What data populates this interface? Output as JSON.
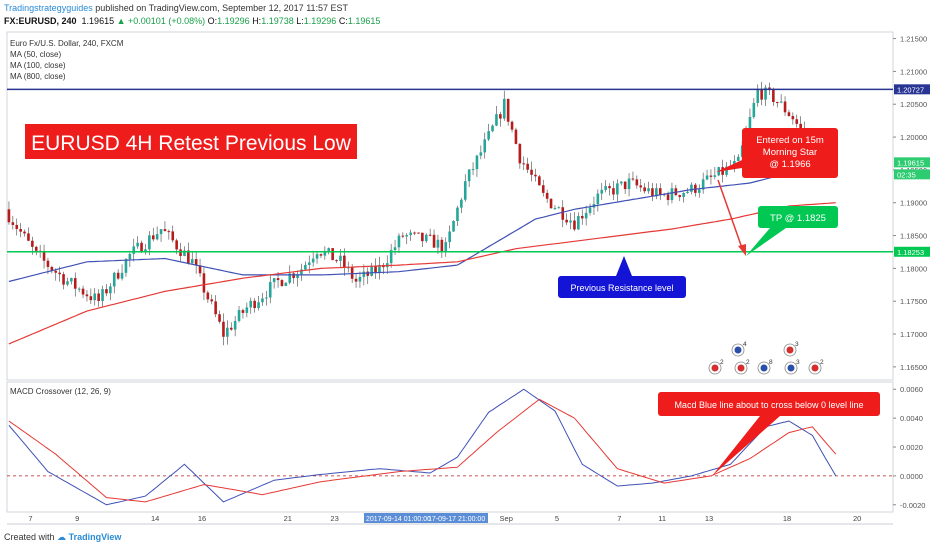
{
  "header": {
    "author": "Tradingstrategyguides",
    "published": " published on TradingView.com, September 12, 2017 11:57 EST",
    "symbol": "FX:EURUSD, 240",
    "price": "1.19615",
    "change": "+0.00101 (+0.08%)",
    "ohlc_o_label": "O:",
    "ohlc_o": "1.19296",
    "ohlc_h_label": "H:",
    "ohlc_h": "1.19738",
    "ohlc_l_label": "L:",
    "ohlc_l": "1.19296",
    "ohlc_c_label": "C:",
    "ohlc_c": "1.19615"
  },
  "footer": {
    "created_with": "Created with",
    "brand": "TradingView"
  },
  "colors": {
    "up": "#26a69a",
    "down": "#b71c1c",
    "ma50": "#3f51b5",
    "ma100": "#e53935",
    "resistance": "#283593",
    "support": "#00c853",
    "callout_red": "#ef1c1c",
    "callout_green": "#00c853",
    "callout_blue": "#1414d6",
    "macd": "#3f51b5",
    "signal": "#e53935"
  },
  "chart_data": [
    {
      "type": "candlestick",
      "legend": [
        "Euro Fx/U.S. Dollar, 240, FXCM",
        "MA (50, close)",
        "MA (100, close)",
        "MA (800, close)"
      ],
      "ylim": [
        1.163,
        1.216
      ],
      "y_ticks": [
        "1.21500",
        "1.21000",
        "1.20500",
        "1.20000",
        "1.19500",
        "1.19000",
        "1.18500",
        "1.18000",
        "1.17500",
        "1.17000",
        "1.16500"
      ],
      "x_ticks": [
        "7",
        "9",
        "14",
        "16",
        "21",
        "23",
        "Sep",
        "5",
        "7",
        "11",
        "13",
        "18",
        "20"
      ],
      "x_range_labels": [
        "2017-09-14 01:00:00",
        "17-09-17 21:00:00"
      ],
      "price_labels": {
        "resistance": "1.20727",
        "support": "1.18253",
        "last": "1.19615",
        "countdown": "02:35"
      },
      "levels": {
        "resistance": 1.20727,
        "support": 1.18253
      },
      "anchors": [
        [
          0,
          1.189
        ],
        [
          8,
          1.182
        ],
        [
          16,
          1.178
        ],
        [
          24,
          1.175
        ],
        [
          32,
          1.182
        ],
        [
          40,
          1.186
        ],
        [
          48,
          1.181
        ],
        [
          56,
          1.17
        ],
        [
          62,
          1.174
        ],
        [
          70,
          1.178
        ],
        [
          76,
          1.18
        ],
        [
          80,
          1.183
        ],
        [
          86,
          1.181
        ],
        [
          90,
          1.178
        ],
        [
          96,
          1.18
        ],
        [
          102,
          1.185
        ],
        [
          110,
          1.184
        ],
        [
          113,
          1.183
        ],
        [
          118,
          1.193
        ],
        [
          124,
          1.2
        ],
        [
          128,
          1.205
        ],
        [
          132,
          1.197
        ],
        [
          138,
          1.191
        ],
        [
          146,
          1.187
        ],
        [
          152,
          1.191
        ],
        [
          160,
          1.193
        ],
        [
          168,
          1.191
        ],
        [
          176,
          1.192
        ],
        [
          182,
          1.194
        ],
        [
          188,
          1.196
        ],
        [
          193,
          1.207
        ],
        [
          197,
          1.206
        ],
        [
          202,
          1.203
        ],
        [
          207,
          1.198
        ],
        [
          212,
          1.195
        ]
      ],
      "ma50": [
        [
          0,
          1.178
        ],
        [
          20,
          1.181
        ],
        [
          40,
          1.1815
        ],
        [
          60,
          1.179
        ],
        [
          80,
          1.179
        ],
        [
          100,
          1.1795
        ],
        [
          115,
          1.1805
        ],
        [
          125,
          1.184
        ],
        [
          135,
          1.1875
        ],
        [
          145,
          1.189
        ],
        [
          160,
          1.1905
        ],
        [
          175,
          1.192
        ],
        [
          190,
          1.193
        ],
        [
          200,
          1.1945
        ],
        [
          212,
          1.1955
        ]
      ],
      "ma100": [
        [
          0,
          1.1685
        ],
        [
          20,
          1.1735
        ],
        [
          40,
          1.1765
        ],
        [
          60,
          1.1785
        ],
        [
          80,
          1.18
        ],
        [
          100,
          1.1805
        ],
        [
          115,
          1.181
        ],
        [
          130,
          1.183
        ],
        [
          150,
          1.1845
        ],
        [
          170,
          1.186
        ],
        [
          185,
          1.1875
        ],
        [
          200,
          1.1895
        ],
        [
          212,
          1.19
        ]
      ],
      "annotations": [
        {
          "text": "EURUSD 4H Retest Previous Low"
        },
        {
          "text": "Entered on 15m Morning Star @ 1.1966",
          "lines": [
            "Entered on 15m",
            "Morning Star",
            "@ 1.1966"
          ]
        },
        {
          "text": "TP @ 1.1825"
        },
        {
          "text": "Previous Resistance level"
        }
      ],
      "event_badges": [
        "2",
        "4",
        "2",
        "8",
        "3",
        "3",
        "2"
      ]
    },
    {
      "type": "line",
      "title": "MACD Crossover (12, 26, 9)",
      "ylim": [
        -0.0025,
        0.0065
      ],
      "y_ticks": [
        "0.0060",
        "0.0040",
        "0.0020",
        "0.0000",
        "-0.0020"
      ],
      "series": [
        {
          "name": "",
          "values": [
            [
              0,
              0.0035
            ],
            [
              10,
              0.0003
            ],
            [
              25,
              -0.002
            ],
            [
              35,
              -0.0014
            ],
            [
              45,
              0.0008
            ],
            [
              55,
              -0.0018
            ],
            [
              68,
              -0.0003
            ],
            [
              80,
              0.0001
            ],
            [
              95,
              0.0005
            ],
            [
              108,
              0.0002
            ],
            [
              115,
              0.0013
            ],
            [
              123,
              0.0044
            ],
            [
              132,
              0.006
            ],
            [
              140,
              0.0045
            ],
            [
              147,
              0.0008
            ],
            [
              156,
              -0.0007
            ],
            [
              165,
              -0.0005
            ],
            [
              175,
              0.0
            ],
            [
              185,
              0.0008
            ],
            [
              194,
              0.0034
            ],
            [
              200,
              0.0038
            ],
            [
              206,
              0.0028
            ],
            [
              212,
              0.0
            ]
          ]
        },
        {
          "name": "",
          "values": [
            [
              0,
              0.0038
            ],
            [
              12,
              0.0015
            ],
            [
              25,
              -0.0015
            ],
            [
              35,
              -0.0018
            ],
            [
              50,
              -0.0006
            ],
            [
              65,
              -0.0013
            ],
            [
              80,
              -0.0004
            ],
            [
              100,
              0.0003
            ],
            [
              115,
              0.0006
            ],
            [
              125,
              0.003
            ],
            [
              136,
              0.0053
            ],
            [
              145,
              0.004
            ],
            [
              156,
              0.0005
            ],
            [
              168,
              -0.0005
            ],
            [
              180,
              0.0
            ],
            [
              190,
              0.0012
            ],
            [
              200,
              0.003
            ],
            [
              206,
              0.0034
            ],
            [
              212,
              0.0015
            ]
          ]
        }
      ],
      "annotations": [
        {
          "text": "Macd Blue line about to cross below 0 level line"
        }
      ]
    }
  ]
}
